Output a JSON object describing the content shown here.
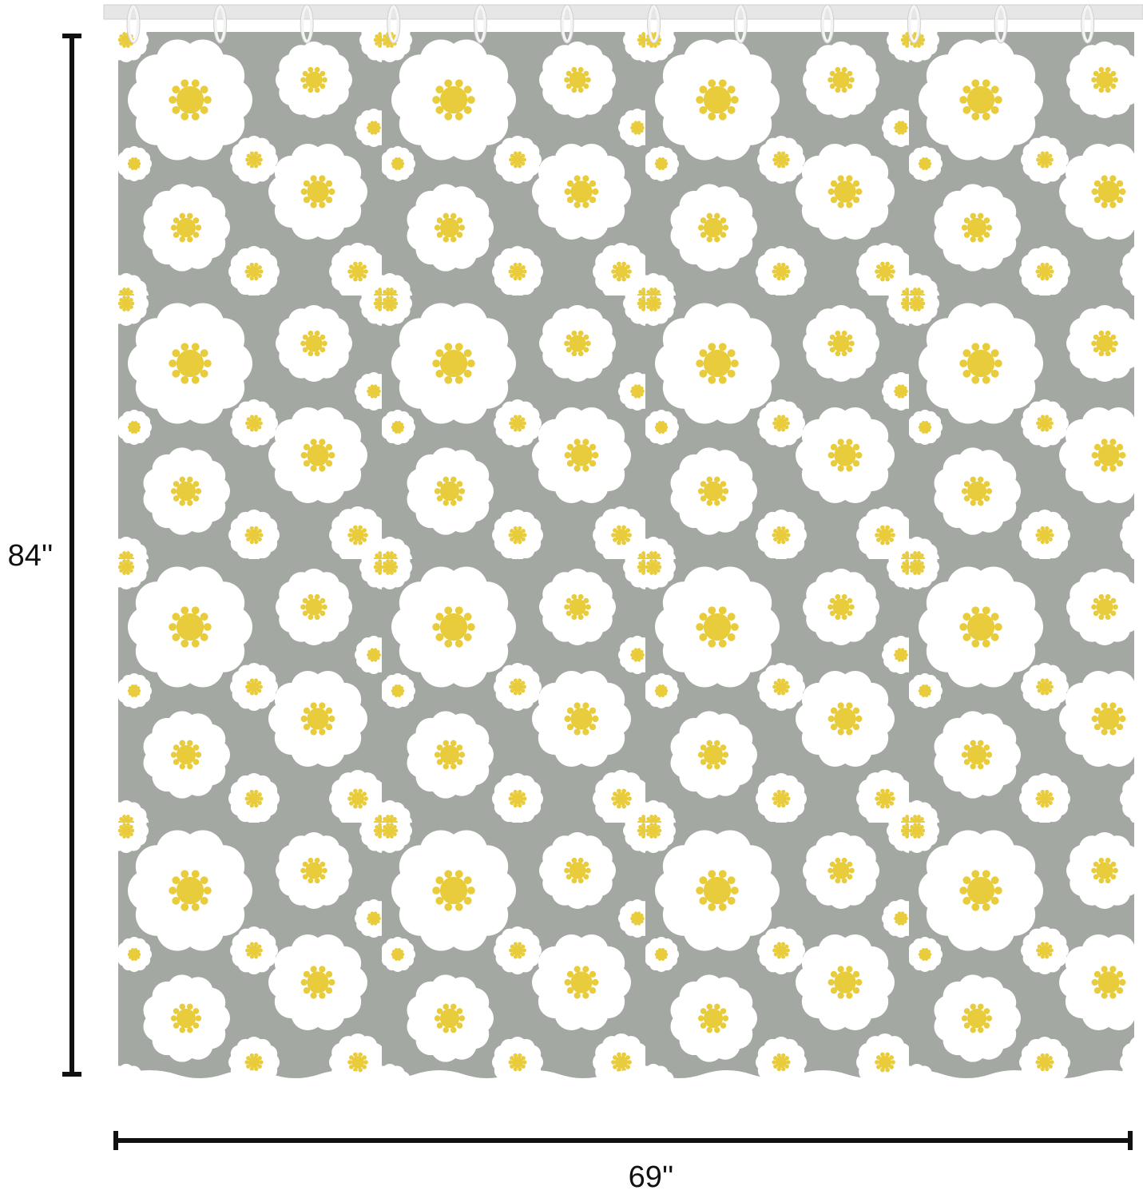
{
  "dimensions": {
    "height": "84''",
    "width": "69''"
  }
}
